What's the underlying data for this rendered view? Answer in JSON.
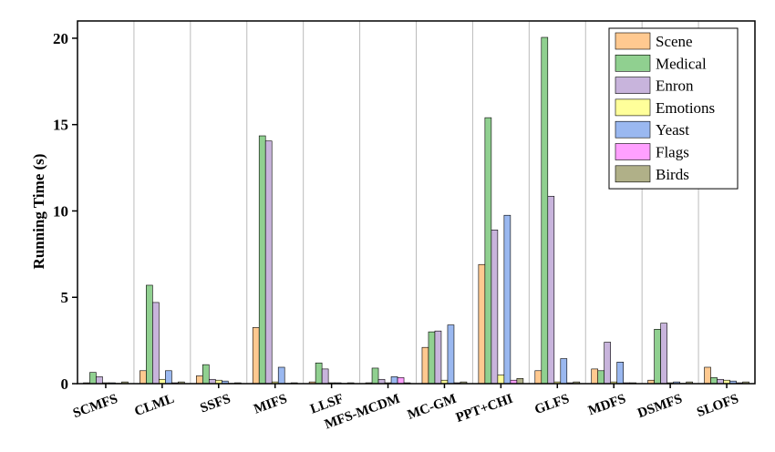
{
  "chart_data": {
    "type": "bar",
    "y_label": "Running Time (s)",
    "categories": [
      "SCMFS",
      "CLML",
      "SSFS",
      "MIFS",
      "LLSF",
      "MFS-MCDM",
      "MC-GM",
      "PPT+CHI",
      "GLFS",
      "MDFS",
      "DSMFS",
      "SLOFS"
    ],
    "series": [
      {
        "name": "Scene",
        "color": "#ffc990",
        "values": [
          0.05,
          0.75,
          0.45,
          3.25,
          0.1,
          0.05,
          2.1,
          6.9,
          0.75,
          0.85,
          0.2,
          0.95
        ]
      },
      {
        "name": "Medical",
        "color": "#90d090",
        "values": [
          0.65,
          5.7,
          1.1,
          14.35,
          1.2,
          0.9,
          3.0,
          15.4,
          20.05,
          0.75,
          3.15,
          0.35
        ]
      },
      {
        "name": "Enron",
        "color": "#c8b4dc",
        "values": [
          0.4,
          4.7,
          0.25,
          14.05,
          0.85,
          0.25,
          3.05,
          8.9,
          10.85,
          2.4,
          3.5,
          0.25
        ]
      },
      {
        "name": "Emotions",
        "color": "#ffff9a",
        "values": [
          0.05,
          0.25,
          0.2,
          0.1,
          0.05,
          0.05,
          0.2,
          0.5,
          0.1,
          0.1,
          0.05,
          0.2
        ]
      },
      {
        "name": "Yeast",
        "color": "#9ab8f0",
        "values": [
          0.05,
          0.75,
          0.15,
          0.95,
          0.05,
          0.4,
          3.4,
          9.75,
          1.45,
          1.25,
          0.1,
          0.15
        ]
      },
      {
        "name": "Flags",
        "color": "#ffa0ff",
        "values": [
          0.02,
          0.05,
          0.02,
          0.02,
          0.02,
          0.35,
          0.05,
          0.2,
          0.05,
          0.05,
          0.02,
          0.05
        ]
      },
      {
        "name": "Birds",
        "color": "#b0b088",
        "values": [
          0.1,
          0.1,
          0.05,
          0.05,
          0.05,
          0.05,
          0.1,
          0.3,
          0.1,
          0.05,
          0.1,
          0.1
        ]
      }
    ],
    "ylim": [
      0,
      21
    ],
    "yticks": [
      0,
      5,
      10,
      15,
      20
    ],
    "legend": "upper right"
  }
}
